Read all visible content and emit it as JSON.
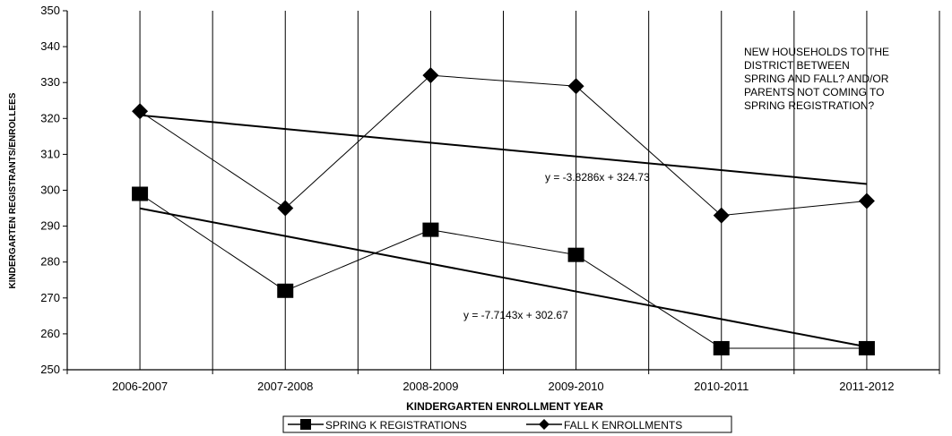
{
  "chart_data": {
    "type": "line",
    "categories": [
      "2006-2007",
      "2007-2008",
      "2008-2009",
      "2009-2010",
      "2010-2011",
      "2011-2012"
    ],
    "series": [
      {
        "name": "SPRING K REGISTRATIONS",
        "marker": "square",
        "values": [
          299,
          272,
          289,
          282,
          256,
          256
        ],
        "color": "#000000"
      },
      {
        "name": "FALL K ENROLLMENTS",
        "marker": "diamond",
        "values": [
          322,
          295,
          332,
          329,
          293,
          297
        ],
        "color": "#000000"
      }
    ],
    "trendlines": [
      {
        "series": "FALL K ENROLLMENTS",
        "slope": -3.8286,
        "intercept": 324.73,
        "equation": "y = -3.8286x + 324.73"
      },
      {
        "series": "SPRING K REGISTRATIONS",
        "slope": -7.7143,
        "intercept": 302.67,
        "equation": "y = -7.7143x + 302.67"
      }
    ],
    "xlabel": "KINDERGARTEN ENROLLMENT YEAR",
    "ylabel": "KINDERGARTEN REGISTRANTS/ENROLLEES",
    "ylim": [
      250,
      350
    ],
    "yticks": [
      250,
      260,
      270,
      280,
      290,
      300,
      310,
      320,
      330,
      340,
      350
    ],
    "grid": "vertical",
    "legend": "bottom-center",
    "annotation": [
      "NEW HOUSEHOLDS TO THE",
      "DISTRICT BETWEEN",
      "SPRING AND FALL? AND/OR",
      "PARENTS NOT COMING TO",
      "SPRING REGISTRATION?"
    ]
  }
}
